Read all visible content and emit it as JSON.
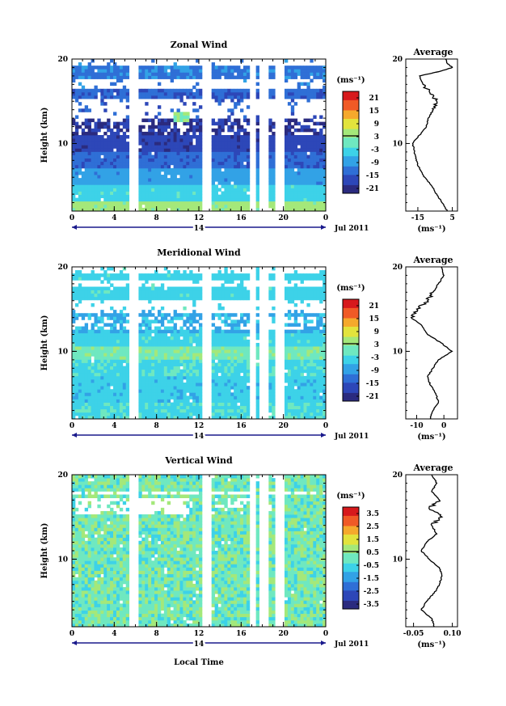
{
  "figure": {
    "xlabel": "Local Time",
    "date_label": "Jul 2011",
    "day_label": "14"
  },
  "chart_data": [
    {
      "type": "heatmap",
      "title": "Zonal Wind",
      "ylabel": "Height (km)",
      "xlabel": "",
      "x_ticks": [
        "0",
        "4",
        "8",
        "12",
        "16",
        "20",
        "0"
      ],
      "xlim": [
        0,
        24
      ],
      "y_ticks": [
        "20",
        "10"
      ],
      "ylim": [
        2,
        20
      ],
      "colorbar": {
        "unit": "(ms⁻¹)",
        "ticks": [
          "21",
          "15",
          "9",
          "3",
          "-3",
          "-9",
          "-15",
          "-21"
        ],
        "range": [
          -24,
          24
        ]
      },
      "data_gaps_hours": [
        [
          5.7,
          6.0
        ],
        [
          12.3,
          13.2
        ],
        [
          17.0,
          17.2
        ],
        [
          18.0,
          18.4
        ],
        [
          19.5,
          19.9
        ]
      ],
      "description_levels": [
        {
          "height_km": 18.0,
          "value": -15
        },
        {
          "height_km": 12.0,
          "value": -18
        },
        {
          "height_km": 9.0,
          "value": -18
        },
        {
          "height_km": 6.0,
          "value": -6
        },
        {
          "height_km": 3.0,
          "value": 3
        }
      ],
      "profile": {
        "title": "Average",
        "xlabel": "(ms⁻¹)",
        "x_ticks": [
          "-15",
          "5"
        ],
        "x_tick_values": [
          -15,
          5
        ],
        "xlim": [
          -22,
          8
        ],
        "height_km": [
          2,
          3,
          4,
          5,
          6,
          7,
          8,
          9,
          10,
          11,
          12,
          13,
          14,
          15,
          16,
          17,
          18,
          18.5,
          19,
          19.5,
          20
        ],
        "values": [
          2,
          -1,
          -4,
          -7,
          -11,
          -14,
          -16,
          -17,
          -18,
          -14,
          -10,
          -9,
          -6,
          -4,
          -8,
          -12,
          -14,
          -3,
          5,
          2,
          1
        ]
      }
    },
    {
      "type": "heatmap",
      "title": "Meridional Wind",
      "ylabel": "Height (km)",
      "xlabel": "",
      "x_ticks": [
        "0",
        "4",
        "8",
        "12",
        "16",
        "20",
        "0"
      ],
      "xlim": [
        0,
        24
      ],
      "y_ticks": [
        "20",
        "10"
      ],
      "ylim": [
        2,
        20
      ],
      "colorbar": {
        "unit": "(ms⁻¹)",
        "ticks": [
          "21",
          "15",
          "9",
          "3",
          "-3",
          "-9",
          "-15",
          "-21"
        ],
        "range": [
          -24,
          24
        ]
      },
      "data_gaps_hours": [
        [
          5.7,
          6.0
        ],
        [
          12.3,
          13.2
        ],
        [
          17.0,
          17.2
        ],
        [
          18.0,
          18.4
        ],
        [
          19.5,
          19.9
        ]
      ],
      "profile": {
        "title": "Average",
        "xlabel": "(ms⁻¹)",
        "x_ticks": [
          "-10",
          "0"
        ],
        "x_tick_values": [
          -10,
          0
        ],
        "xlim": [
          -14,
          5
        ],
        "height_km": [
          2,
          3,
          4,
          5,
          6,
          7,
          8,
          9,
          10,
          11,
          12,
          13,
          14,
          15,
          16,
          17,
          18,
          19,
          20
        ],
        "values": [
          -5,
          -4,
          -2,
          -3,
          -5,
          -6,
          -4,
          -2,
          3,
          -1,
          -6,
          -8,
          -12,
          -10,
          -6,
          -4,
          -2,
          0,
          -1
        ]
      }
    },
    {
      "type": "heatmap",
      "title": "Vertical Wind",
      "ylabel": "Height (km)",
      "xlabel": "Local Time",
      "x_ticks": [
        "0",
        "4",
        "8",
        "12",
        "16",
        "20",
        "0"
      ],
      "xlim": [
        0,
        24
      ],
      "y_ticks": [
        "20",
        "10"
      ],
      "ylim": [
        2,
        20
      ],
      "colorbar": {
        "unit": "(ms⁻¹)",
        "ticks": [
          "3.5",
          "2.5",
          "1.5",
          "0.5",
          "-0.5",
          "-1.5",
          "-2.5",
          "-3.5"
        ],
        "range": [
          -4,
          4
        ]
      },
      "data_gaps_hours": [
        [
          5.7,
          6.0
        ],
        [
          12.3,
          13.2
        ],
        [
          17.0,
          17.2
        ],
        [
          18.0,
          18.4
        ],
        [
          19.5,
          19.9
        ]
      ],
      "profile": {
        "title": "Average",
        "xlabel": "(ms⁻¹)",
        "x_ticks": [
          "-0.05",
          "0.10"
        ],
        "x_tick_values": [
          -0.05,
          0.1
        ],
        "xlim": [
          -0.08,
          0.12
        ],
        "height_km": [
          2,
          3,
          4,
          5,
          6,
          7,
          8,
          9,
          10,
          11,
          12,
          13,
          14,
          15,
          16,
          17,
          18,
          19,
          20
        ],
        "values": [
          0.03,
          0.02,
          -0.02,
          0.0,
          0.03,
          0.05,
          0.06,
          0.05,
          0.01,
          -0.02,
          0.0,
          0.04,
          0.02,
          0.06,
          0.01,
          0.05,
          0.02,
          0.04,
          0.02
        ]
      }
    }
  ],
  "colors": {
    "scale": [
      "#2b2b7f",
      "#2d47b8",
      "#2f6fd6",
      "#32a2e6",
      "#3dd2e8",
      "#6fe8c0",
      "#a4e87a",
      "#e2e33d",
      "#f5a92c",
      "#f05a26",
      "#d7191c"
    ],
    "axis": "#000000",
    "arrow": "#1a1a8c"
  }
}
